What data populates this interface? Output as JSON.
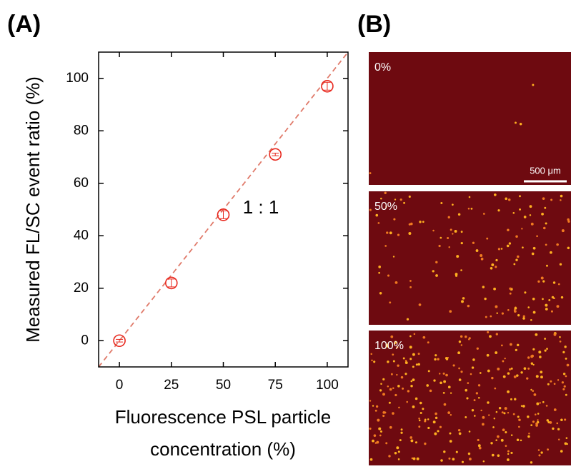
{
  "panel_labels": [
    "(A)",
    "(B)"
  ],
  "chart_data": {
    "type": "scatter",
    "x_label_lines": [
      "Fluorescence PSL particle",
      "concentration (%)"
    ],
    "y_label": "Measured FL/SC event ratio (%)",
    "x": [
      0,
      25,
      50,
      75,
      100
    ],
    "values": [
      0,
      22,
      48,
      71,
      97
    ],
    "errors": [
      0.5,
      1.5,
      1.5,
      0.5,
      1.5
    ],
    "color": "#e8281e",
    "xlim": [
      -10,
      110
    ],
    "ylim": [
      -10,
      110
    ],
    "xticks": [
      0,
      25,
      50,
      75,
      100
    ],
    "yticks": [
      0,
      20,
      40,
      60,
      80,
      100
    ],
    "reference_line": {
      "slope": 1,
      "intercept": 0,
      "label": "1 : 1",
      "color": "#e07a6a"
    }
  },
  "images": [
    {
      "label": "0%"
    },
    {
      "label": "50%"
    },
    {
      "label": "100%"
    }
  ],
  "scale_bar": "500 μm"
}
